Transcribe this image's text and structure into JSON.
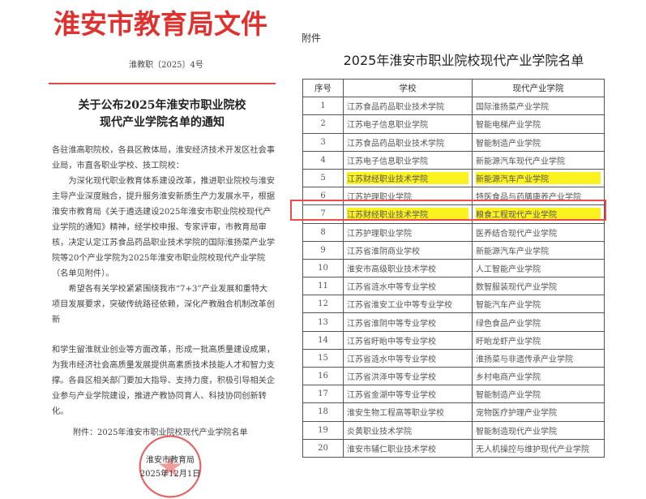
{
  "notice": {
    "header": "淮安市教育局文件",
    "doc_number": "淮教职〔2025〕4号",
    "title_line1": "关于公布2025年淮安市职业院校",
    "title_line2": "现代产业学院名单的通知",
    "paragraphs": [
      "各驻淮高职院校，各县区教体局，淮安经济技术开发区社会事业局，市直各职业学校、技工院校：",
      "为深化现代职业教育体系建设改革，推进职业院校与淮安主导产业深度融合，提升服务淮安新质生产力发展水平，根据淮安市教育局《关于遴选建设2025年淮安市职业院校现代产业学院的通知》精神，经学校申报、专家评审，市教育局审核，决定认定江苏食品药品职业技术学院的国际淮扬菜产业学院等20个产业学院为2025年淮安市职业院校现代产业学院（名单见附件）。",
      "希望各有关学校紧紧围绕我市“7+3”产业发展和重特大项目发展要求，突破传统路径依赖，深化产教融合机制改革创新",
      "和学生留淮就业创业等方面改革，形成一批高质量建设成果，为我市经济社会高质量发展提供高素质技术技能人才和智力支撑。各县区相关部门要加大指导、支持力度，积极引导相关企业参与产业学院建设，推进产教协同育人、科技协同创新转化。"
    ],
    "attachment": "附件：2025年淮安市职业院校现代产业学院名单",
    "signer": "淮安市教育局",
    "date": "2025年12月1日",
    "seal_text": "淮安市教育局",
    "colors": {
      "header_red": "#e0312f",
      "highlight": "#fbf220",
      "box_red": "#ef4b4b"
    }
  },
  "attachment_page": {
    "label": "附件",
    "title": "2025年淮安市职业院校现代产业学院名单",
    "columns": [
      "序号",
      "学校",
      "现代产业学院"
    ],
    "rows": [
      {
        "no": "1",
        "school": "江苏食品药品职业技术学院",
        "college": "国际淮扬菜产业学院"
      },
      {
        "no": "2",
        "school": "江苏电子信息职业学院",
        "college": "智能电梯产业学院"
      },
      {
        "no": "3",
        "school": "江苏食品药品职业技术学院",
        "college": "智能制造产业学院"
      },
      {
        "no": "4",
        "school": "江苏电子信息职业学院",
        "college": "新能源汽车现代产业学院"
      },
      {
        "no": "5",
        "school": "江苏财经职业技术学院",
        "college": "新能源汽车产业学院",
        "highlighted": true
      },
      {
        "no": "6",
        "school": "江苏护理职业学院",
        "college": "特医食品与药膳康养产业学院"
      },
      {
        "no": "7",
        "school": "江苏财经职业技术学院",
        "college": "粮食工程现代产业学院",
        "highlighted": true,
        "boxed": true
      },
      {
        "no": "8",
        "school": "江苏护理职业学院",
        "college": "医养结合现代产业学院"
      },
      {
        "no": "9",
        "school": "江苏省淮阴商业学校",
        "college": "新能源汽车产业学院"
      },
      {
        "no": "10",
        "school": "淮安市高级职业技术学校",
        "college": "人工智能产业学院"
      },
      {
        "no": "11",
        "school": "江苏省涟水中等专业学校",
        "college": "数智服装现代产业学院"
      },
      {
        "no": "12",
        "school": "江苏省淮安工业中等专业学校",
        "college": "智能汽车产业学院"
      },
      {
        "no": "13",
        "school": "江苏省淮阴中等专业学校",
        "college": "绿色食品产业学院"
      },
      {
        "no": "14",
        "school": "江苏省盱眙中等专业学校",
        "college": "盱眙龙虾产业学院"
      },
      {
        "no": "15",
        "school": "江苏省涟水中等专业学校",
        "college": "淮扬菜与非遗传承产业学院"
      },
      {
        "no": "16",
        "school": "江苏省洪泽中等专业学校",
        "college": "乡村电商产业学院"
      },
      {
        "no": "17",
        "school": "江苏省金湖中等专业学校",
        "college": "智能制造产业学院"
      },
      {
        "no": "18",
        "school": "淮安生物工程高等职业学校",
        "college": "宠物医疗护理产业学院"
      },
      {
        "no": "19",
        "school": "炎黄职业技术学院",
        "college": "智能制造现代产业学院"
      },
      {
        "no": "20",
        "school": "淮安市辅仁职业技术学校",
        "college": "无人机操控与维护现代产业学院"
      }
    ]
  }
}
